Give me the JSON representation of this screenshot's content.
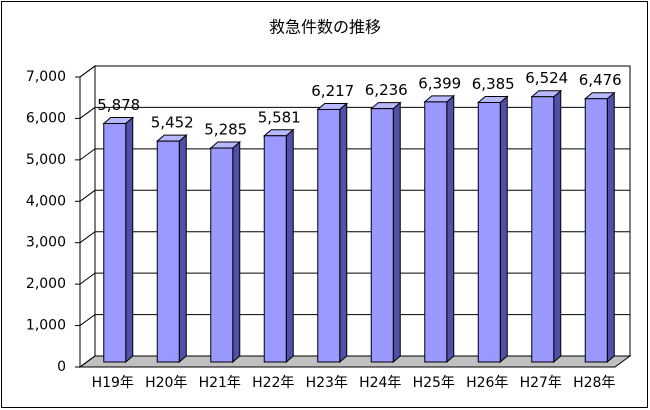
{
  "chart_data": {
    "type": "bar3d",
    "title": "救急件数の推移",
    "categories": [
      "H19年",
      "H20年",
      "H21年",
      "H22年",
      "H23年",
      "H24年",
      "H25年",
      "H26年",
      "H27年",
      "H28年"
    ],
    "values": [
      5878,
      5452,
      5285,
      5581,
      6217,
      6236,
      6399,
      6385,
      6524,
      6476
    ],
    "value_labels": [
      "5,878",
      "5,452",
      "5,285",
      "5,581",
      "6,217",
      "6,236",
      "6,399",
      "6,385",
      "6,524",
      "6,476"
    ],
    "color": "#9999ff",
    "ylim": [
      0,
      7000
    ],
    "yticks": [
      0,
      {
        "value": 1000,
        "label": "1,000"
      },
      {
        "value": 2000,
        "label": "2,000"
      },
      {
        "value": 3000,
        "label": "3,000"
      },
      {
        "value": 4000,
        "label": "4,000"
      },
      {
        "value": 5000,
        "label": "5,000"
      },
      {
        "value": 6000,
        "label": "6,000"
      },
      {
        "value": 7000,
        "label": "7,000"
      }
    ],
    "grid": true
  }
}
